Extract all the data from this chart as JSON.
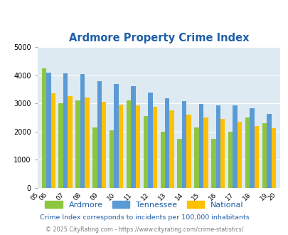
{
  "title": "Ardmore Property Crime Index",
  "years": [
    2006,
    2007,
    2008,
    2009,
    2010,
    2011,
    2012,
    2013,
    2014,
    2015,
    2016,
    2017,
    2018,
    2019
  ],
  "ardmore": [
    4250,
    3000,
    3100,
    2150,
    2050,
    3100,
    2550,
    2000,
    1750,
    2150,
    1750,
    1990,
    2500,
    2300
  ],
  "tennessee": [
    4100,
    4075,
    4050,
    3780,
    3680,
    3600,
    3380,
    3175,
    3075,
    2975,
    2920,
    2940,
    2840,
    2625
  ],
  "national": [
    3350,
    3250,
    3200,
    3050,
    2960,
    2920,
    2880,
    2740,
    2610,
    2490,
    2450,
    2360,
    2200,
    2130
  ],
  "ardmore_color": "#8dc63f",
  "tennessee_color": "#5b9bd5",
  "national_color": "#ffc000",
  "bg_color": "#deeaf1",
  "ylim": [
    0,
    5000
  ],
  "yticks": [
    0,
    1000,
    2000,
    3000,
    4000,
    5000
  ],
  "xtick_labels": [
    "06",
    "07",
    "08",
    "09",
    "10",
    "11",
    "12",
    "13",
    "14",
    "15",
    "16",
    "17",
    "18",
    "19"
  ],
  "subtitle": "Crime Index corresponds to incidents per 100,000 inhabitants",
  "footer": "© 2025 CityRating.com - https://www.cityrating.com/crime-statistics/",
  "title_color": "#1f5fa6",
  "subtitle_color": "#1f5fa6",
  "footer_color": "#808080",
  "legend_labels": [
    "Ardmore",
    "Tennessee",
    "National"
  ]
}
